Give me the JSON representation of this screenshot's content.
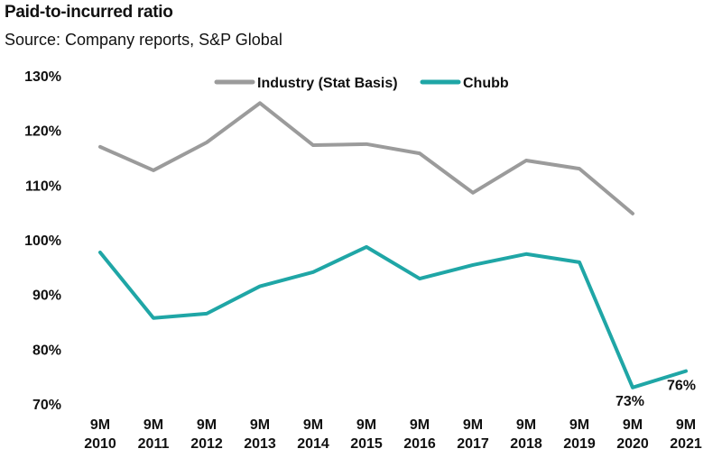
{
  "chart_data": {
    "type": "line",
    "title": "Paid-to-incurred ratio",
    "subtitle": "Source: Company reports, S&P Global",
    "xlabel": "",
    "ylabel": "",
    "ylim": [
      70,
      130
    ],
    "yticks": [
      "70%",
      "80%",
      "90%",
      "100%",
      "110%",
      "120%",
      "130%"
    ],
    "ytick_values": [
      70,
      80,
      90,
      100,
      110,
      120,
      130
    ],
    "categories": [
      [
        "9M",
        "2010"
      ],
      [
        "9M",
        "2011"
      ],
      [
        "9M",
        "2012"
      ],
      [
        "9M",
        "2013"
      ],
      [
        "9M",
        "2014"
      ],
      [
        "9M",
        "2015"
      ],
      [
        "9M",
        "2016"
      ],
      [
        "9M",
        "2017"
      ],
      [
        "9M",
        "2018"
      ],
      [
        "9M",
        "2019"
      ],
      [
        "9M",
        "2020"
      ],
      [
        "9M",
        "2021"
      ]
    ],
    "grid": false,
    "legend_placement": "top-center",
    "series": [
      {
        "name": "Industry (Stat Basis)",
        "color": "#9b9b9b",
        "values": [
          117,
          112.7,
          117.8,
          125,
          117.3,
          117.5,
          115.8,
          108.6,
          114.5,
          113,
          104.8,
          null
        ]
      },
      {
        "name": "Chubb",
        "color": "#1fa6a6",
        "values": [
          97.7,
          85.7,
          86.5,
          91.5,
          94.1,
          98.7,
          92.9,
          95.4,
          97.4,
          95.9,
          73,
          76
        ]
      }
    ],
    "annotations": [
      {
        "series": "Chubb",
        "index": 10,
        "text": "73%"
      },
      {
        "series": "Chubb",
        "index": 11,
        "text": "76%"
      }
    ]
  }
}
